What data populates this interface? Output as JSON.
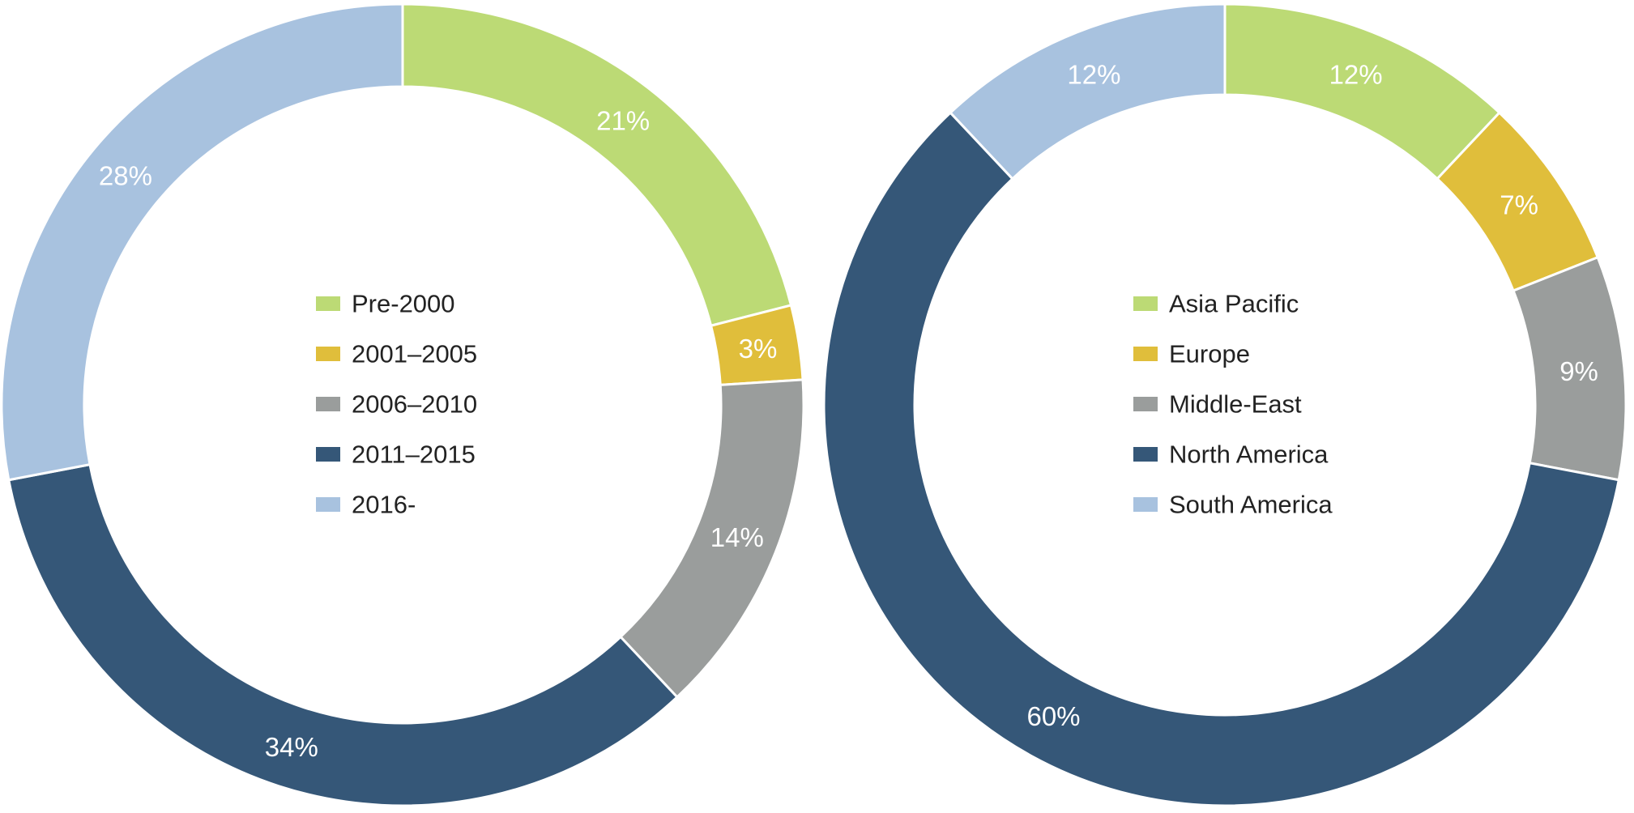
{
  "chart_data": [
    {
      "type": "donut",
      "categories": [
        "Pre-2000",
        "2001–2005",
        "2006–2010",
        "2011–2015",
        "2016-"
      ],
      "values": [
        21,
        3,
        14,
        34,
        28
      ],
      "labels": [
        "21%",
        "3%",
        "14%",
        "34%",
        "28%"
      ],
      "colors": [
        "#bcda75",
        "#e0be3b",
        "#9a9d9c",
        "#355778",
        "#a8c2df"
      ],
      "legend": "center",
      "start": "top",
      "direction": "clockwise"
    },
    {
      "type": "donut",
      "categories": [
        "Asia Pacific",
        "Europe",
        "Middle-East",
        "North America",
        "South America"
      ],
      "values": [
        12,
        7,
        9,
        60,
        12
      ],
      "labels": [
        "12%",
        "7%",
        "9%",
        "60%",
        "12%"
      ],
      "colors": [
        "#bcda75",
        "#e0be3b",
        "#9a9d9c",
        "#355778",
        "#a8c2df"
      ],
      "legend": "center",
      "start": "top",
      "direction": "clockwise"
    }
  ]
}
